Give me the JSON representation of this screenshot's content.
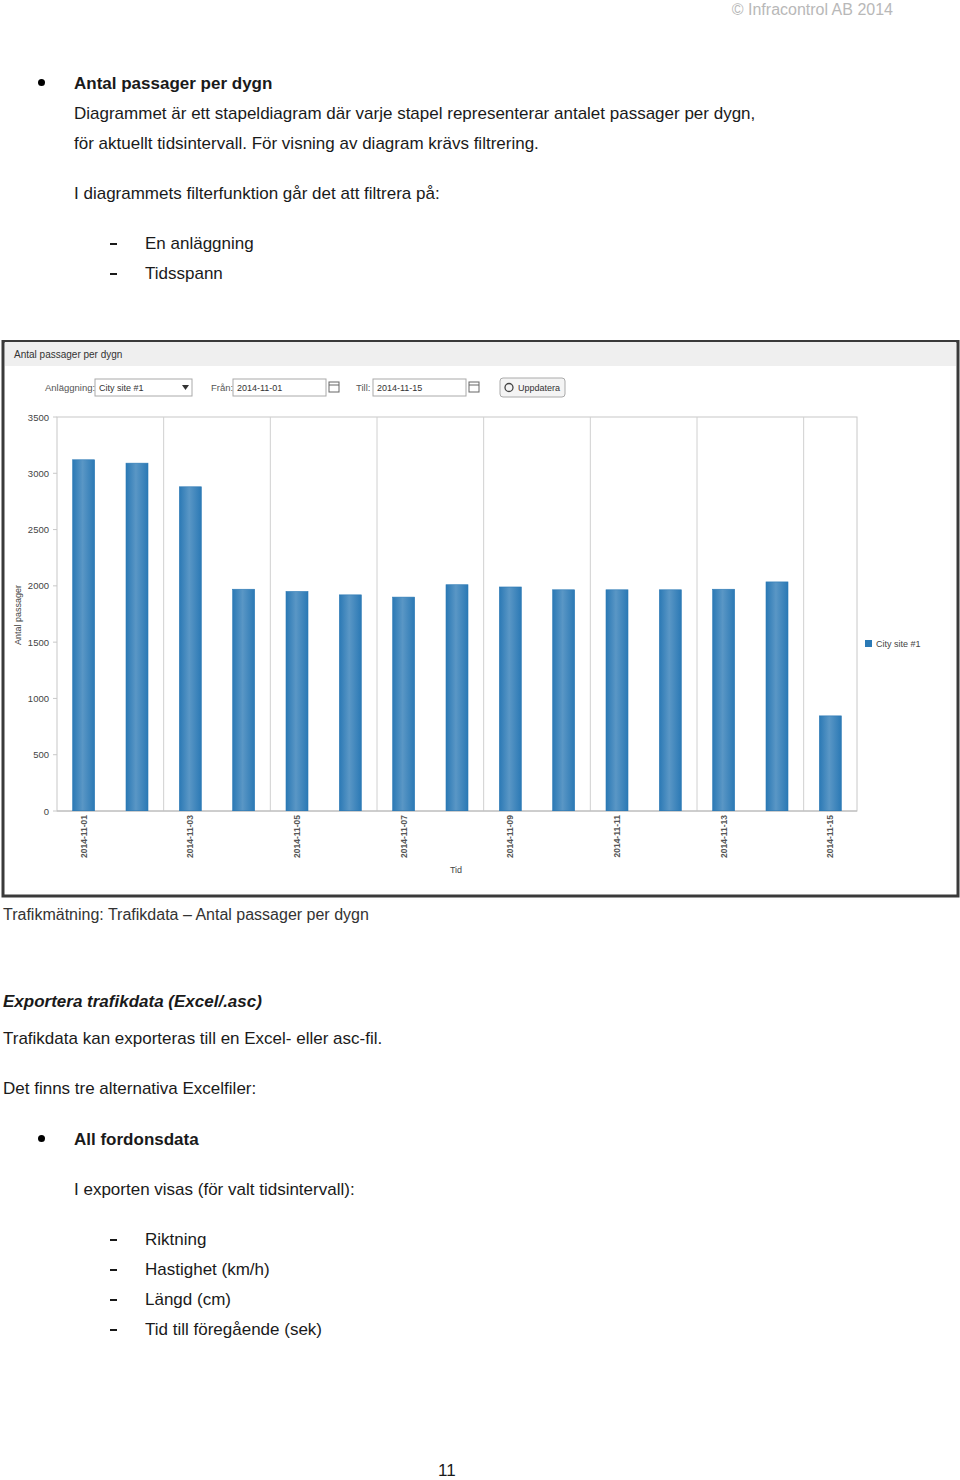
{
  "header": {
    "copyright": "© Infracontrol AB 2014"
  },
  "section": {
    "title": "Antal passager per dygn",
    "paragraph": [
      "Diagrammet är ett stapeldiagram där varje stapel representerar antalet passager per dygn,",
      "för aktuellt tidsintervall. För visning av diagram krävs filtrering."
    ],
    "filter_intro": "I diagrammets filterfunktion går det att filtrera på:",
    "filter_items": [
      "En anläggning",
      "Tidsspann"
    ]
  },
  "widget": {
    "facility_label": "Anläggning:",
    "facility_value": "City site #1",
    "from_label": "Från:",
    "from_value": "2014-11-01",
    "to_label": "Till:",
    "to_value": "2014-11-15",
    "button": "Uppdatera"
  },
  "chart_data": {
    "type": "bar",
    "title": "Antal passager per dygn",
    "x_label": "Tid",
    "y_label": "Antal passager",
    "categories": [
      "2014-11-01",
      null,
      "2014-11-03",
      null,
      "2014-11-05",
      null,
      "2014-11-07",
      null,
      "2014-11-09",
      null,
      "2014-11-11",
      null,
      "2014-11-13",
      null,
      "2014-11-15"
    ],
    "series": [
      {
        "name": "City site #1",
        "color": "#2b79b5",
        "values": [
          3120,
          3090,
          2880,
          1970,
          1950,
          1920,
          1900,
          2010,
          1990,
          1965,
          1965,
          1965,
          1970,
          2035,
          845
        ]
      }
    ],
    "ylim": [
      0,
      3500
    ],
    "yticks": [
      0,
      500,
      1000,
      1500,
      2000,
      2500,
      3000,
      3500
    ],
    "grid": true,
    "legend": "right"
  },
  "caption": "Trafikmätning: Trafikdata – Antal passager per dygn",
  "export": {
    "heading": "Exportera trafikdata (Excel/.asc)",
    "paragraph": "Trafikdata kan exporteras till en Excel- eller asc-fil.",
    "intro": "Det finns tre alternativa Excelfiler:",
    "item_title": "All fordonsdata",
    "item_intro": "I exporten visas (för valt tidsintervall):",
    "fields": [
      "Riktning",
      "Hastighet (km/h)",
      "Längd (cm)",
      "Tid till föregående (sek)"
    ]
  },
  "page_number": "11"
}
